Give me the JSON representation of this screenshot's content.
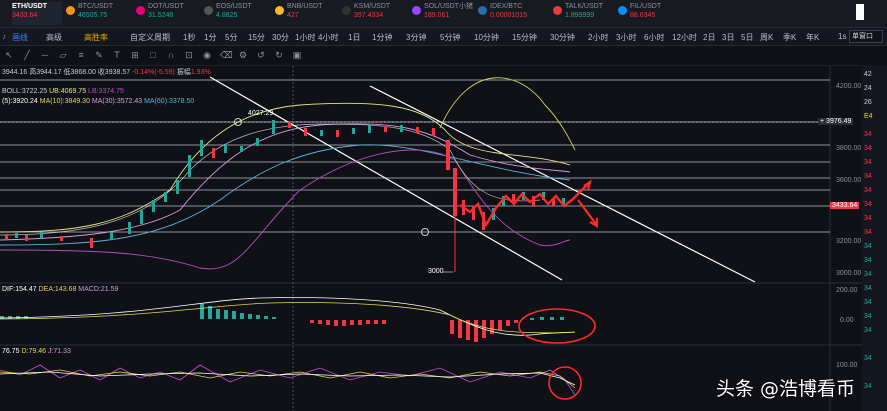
{
  "tickers": [
    {
      "symbol": "ETH/USDT",
      "price": "3433.64",
      "color": "#f23645",
      "icon": "eth-icon"
    },
    {
      "symbol": "BTC/USDT",
      "price": "46505.75",
      "color": "#26a69a",
      "icon": "btc-icon"
    },
    {
      "symbol": "DOT/USDT",
      "price": "31.5248",
      "color": "#26a69a",
      "icon": "dot-icon"
    },
    {
      "symbol": "EOS/USDT",
      "price": "4.8825",
      "color": "#26a69a",
      "icon": "eos-icon"
    },
    {
      "symbol": "BNB/USDT",
      "price": "427",
      "color": "#f23645",
      "icon": "bnb-icon"
    },
    {
      "symbol": "KSM/USDT",
      "price": "397.4334",
      "color": "#f23645",
      "icon": "ksm-icon"
    },
    {
      "symbol": "SOL/USDT小猪",
      "price": "189.061",
      "color": "#f23645",
      "icon": "sol-icon"
    },
    {
      "symbol": "IDEX/BTC",
      "price": "0.00001015",
      "color": "#f23645",
      "icon": "idex-icon"
    },
    {
      "symbol": "TALK/USDT",
      "price": "1.899999",
      "color": "#26a69a",
      "icon": "talk-icon"
    },
    {
      "symbol": "FIL/USDT",
      "price": "88.6345",
      "color": "#f23645",
      "icon": "fil-icon"
    }
  ],
  "toolbar": {
    "items": [
      "画线",
      "高级",
      "高胜率",
      "自定义周期",
      "1秒",
      "1分",
      "5分",
      "15分",
      "30分",
      "1小时",
      "4小时",
      "1日"
    ],
    "intervals": [
      "1分钟",
      "3分钟",
      "5分钟",
      "10分钟",
      "15分钟",
      "30分钟",
      "2小时",
      "3小时",
      "6小时",
      "12小时",
      "2日",
      "3日",
      "5日",
      "周K",
      "季K",
      "年K"
    ],
    "active_interval": "4小时",
    "right_seconds": "1s",
    "right_select": "单窗口"
  },
  "ohlc": {
    "open": "3944.16",
    "high_label": "高",
    "high": "3944.17",
    "low_label": "低",
    "low": "3868.00",
    "close_label": "收",
    "close": "3938.57",
    "change": "-0.14%(-5.59)",
    "amp_label": "振幅",
    "amp": "1.93%"
  },
  "boll": {
    "label": "BOLL:3722.25",
    "ub": "UB:4069.75",
    "lb": "LB:3374.75"
  },
  "ma": {
    "ma5": "(5):3920.24",
    "ma10": "MA(10):3849.30",
    "ma30": "MA(30):3572.43",
    "ma60": "MA(60):3378.50"
  },
  "price_axis": [
    "4200.00",
    "4000.00",
    "3800.00",
    "3600.00",
    "3400.00",
    "3200.00",
    "3000.00"
  ],
  "crosshair_price": "3976.49",
  "last_price": "3433.64",
  "annotations": {
    "high": "4027.29",
    "low": "3000"
  },
  "macd": {
    "dif": "DIF:154.47",
    "dea": "DEA:143.68",
    "macd": "MACD:21.59",
    "axis": [
      "200.00",
      "0.00"
    ]
  },
  "kdj": {
    "k": "76.75",
    "d": "D:79.46",
    "j": "J:71.33",
    "axis": [
      "100.00"
    ]
  },
  "right_panel": {
    "values": [
      "42",
      "24",
      "26",
      "E4",
      "34",
      "34",
      "34",
      "34",
      "34",
      "34",
      "34",
      "34",
      "34",
      "34",
      "34",
      "34",
      "34",
      "34",
      "34",
      "34",
      "34"
    ]
  },
  "watermark": "头条 @浩博看币"
}
